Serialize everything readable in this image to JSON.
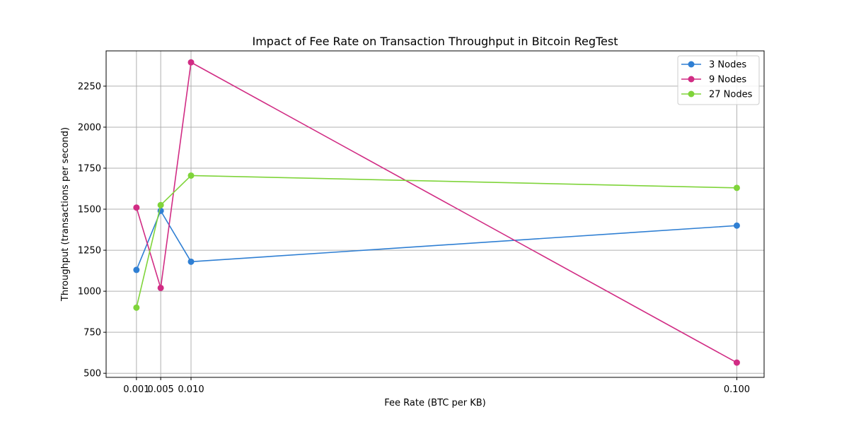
{
  "chart_data": {
    "type": "line",
    "title": "Impact of Fee Rate on Transaction Throughput in Bitcoin RegTest",
    "xlabel": "Fee Rate (BTC per KB)",
    "ylabel": "Throughput (transactions per second)",
    "x": [
      0.001,
      0.005,
      0.01,
      0.1
    ],
    "x_tick_labels": [
      "0.001",
      "0.005",
      "0.010",
      "0.100"
    ],
    "y_ticks": [
      500,
      750,
      1000,
      1250,
      1500,
      1750,
      2000,
      2250
    ],
    "y_tick_labels": [
      "500",
      "750",
      "1000",
      "1250",
      "1500",
      "1750",
      "2000",
      "2250"
    ],
    "xlim": [
      -0.004,
      0.1045
    ],
    "ylim": [
      475,
      2465
    ],
    "grid": true,
    "legend_position": "top-right",
    "series": [
      {
        "name": "3 Nodes",
        "color": "#2f7fd3",
        "values": [
          1130,
          1490,
          1180,
          1400
        ]
      },
      {
        "name": "9 Nodes",
        "color": "#d12c84",
        "values": [
          1510,
          1020,
          2395,
          565
        ]
      },
      {
        "name": "27 Nodes",
        "color": "#7fd43a",
        "values": [
          900,
          1525,
          1705,
          1630
        ]
      }
    ]
  }
}
